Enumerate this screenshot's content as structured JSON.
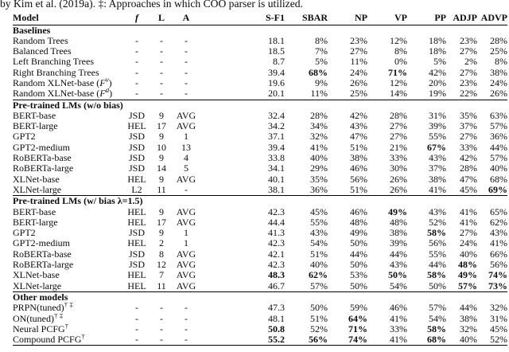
{
  "caption": "by Kim et al. (2019a). ‡: Approaches in which COO parser is utilized.",
  "table": {
    "columns": [
      {
        "label": "Model"
      },
      {
        "label": "f",
        "italic": true
      },
      {
        "label": "L"
      },
      {
        "label": "A"
      },
      {
        "label": "S-F1"
      },
      {
        "label": "SBAR"
      },
      {
        "label": "NP"
      },
      {
        "label": "VP"
      },
      {
        "label": "PP"
      },
      {
        "label": "ADJP"
      },
      {
        "label": "ADVP"
      }
    ],
    "sections": [
      {
        "label": "Baselines",
        "rows": [
          {
            "model_parts": [
              {
                "t": "Random Trees"
              }
            ],
            "cells": [
              "-",
              "-",
              "-",
              "18.1",
              "8%",
              "23%",
              "12%",
              "18%",
              "23%",
              "28%"
            ],
            "bold": []
          },
          {
            "model_parts": [
              {
                "t": "Balanced Trees"
              }
            ],
            "cells": [
              "-",
              "-",
              "-",
              "18.5",
              "7%",
              "27%",
              "8%",
              "18%",
              "27%",
              "25%"
            ],
            "bold": []
          },
          {
            "model_parts": [
              {
                "t": "Left Branching Trees"
              }
            ],
            "cells": [
              "-",
              "-",
              "-",
              "8.7",
              "5%",
              "11%",
              "0%",
              "5%",
              "2%",
              "8%"
            ],
            "bold": []
          },
          {
            "model_parts": [
              {
                "t": "Right Branching Trees"
              }
            ],
            "cells": [
              "-",
              "-",
              "-",
              "39.4",
              "68%",
              "24%",
              "71%",
              "42%",
              "27%",
              "38%"
            ],
            "bold": [
              4,
              6
            ]
          },
          {
            "model_parts": [
              {
                "t": "Random XLNet-base ("
              },
              {
                "t": "F",
                "style": "italic"
              },
              {
                "t": "v",
                "style": "sup-italic"
              },
              {
                "t": ")"
              }
            ],
            "cells": [
              "-",
              "-",
              "-",
              "19.6",
              "9%",
              "26%",
              "12%",
              "20%",
              "23%",
              "24%"
            ],
            "bold": []
          },
          {
            "model_parts": [
              {
                "t": "Random XLNet-base ("
              },
              {
                "t": "F",
                "style": "italic"
              },
              {
                "t": "d",
                "style": "sup-italic"
              },
              {
                "t": ")"
              }
            ],
            "cells": [
              "-",
              "-",
              "-",
              "20.1",
              "11%",
              "25%",
              "14%",
              "19%",
              "22%",
              "26%"
            ],
            "bold": []
          }
        ]
      },
      {
        "label": "Pre-trained LMs (w/o bias)",
        "rows": [
          {
            "model_parts": [
              {
                "t": "BERT-base"
              }
            ],
            "cells": [
              "JSD",
              "9",
              "AVG",
              "32.4",
              "28%",
              "42%",
              "28%",
              "31%",
              "35%",
              "63%"
            ],
            "bold": []
          },
          {
            "model_parts": [
              {
                "t": "BERT-large"
              }
            ],
            "cells": [
              "HEL",
              "17",
              "AVG",
              "34.2",
              "34%",
              "43%",
              "27%",
              "39%",
              "37%",
              "57%"
            ],
            "bold": []
          },
          {
            "model_parts": [
              {
                "t": "GPT2"
              }
            ],
            "cells": [
              "JSD",
              "9",
              "1",
              "37.1",
              "32%",
              "47%",
              "27%",
              "55%",
              "27%",
              "36%"
            ],
            "bold": []
          },
          {
            "model_parts": [
              {
                "t": "GPT2-medium"
              }
            ],
            "cells": [
              "JSD",
              "10",
              "13",
              "39.4",
              "41%",
              "51%",
              "21%",
              "67%",
              "33%",
              "44%"
            ],
            "bold": [
              7
            ]
          },
          {
            "model_parts": [
              {
                "t": "RoBERTa-base"
              }
            ],
            "cells": [
              "JSD",
              "9",
              "4",
              "33.8",
              "40%",
              "38%",
              "33%",
              "43%",
              "42%",
              "57%"
            ],
            "bold": []
          },
          {
            "model_parts": [
              {
                "t": "RoBERTa-large"
              }
            ],
            "cells": [
              "JSD",
              "14",
              "5",
              "34.1",
              "29%",
              "46%",
              "30%",
              "37%",
              "28%",
              "40%"
            ],
            "bold": []
          },
          {
            "model_parts": [
              {
                "t": "XLNet-base"
              }
            ],
            "cells": [
              "HEL",
              "9",
              "AVG",
              "40.1",
              "35%",
              "56%",
              "26%",
              "38%",
              "47%",
              "68%"
            ],
            "bold": []
          },
          {
            "model_parts": [
              {
                "t": "XLNet-large"
              }
            ],
            "cells": [
              "L2",
              "11",
              "-",
              "38.1",
              "36%",
              "51%",
              "26%",
              "41%",
              "45%",
              "69%"
            ],
            "bold": [
              9
            ]
          }
        ]
      },
      {
        "label": "Pre-trained LMs (w/ bias λ=1.5)",
        "rows": [
          {
            "model_parts": [
              {
                "t": "BERT-base"
              }
            ],
            "cells": [
              "HEL",
              "9",
              "AVG",
              "42.3",
              "45%",
              "46%",
              "49%",
              "43%",
              "41%",
              "65%"
            ],
            "bold": [
              6
            ]
          },
          {
            "model_parts": [
              {
                "t": "BERT-large"
              }
            ],
            "cells": [
              "HEL",
              "17",
              "AVG",
              "44.4",
              "55%",
              "48%",
              "48%",
              "52%",
              "41%",
              "62%"
            ],
            "bold": []
          },
          {
            "model_parts": [
              {
                "t": "GPT2"
              }
            ],
            "cells": [
              "JSD",
              "9",
              "1",
              "41.3",
              "43%",
              "49%",
              "38%",
              "58%",
              "27%",
              "43%"
            ],
            "bold": [
              7
            ]
          },
          {
            "model_parts": [
              {
                "t": "GPT2-medium"
              }
            ],
            "cells": [
              "HEL",
              "2",
              "1",
              "42.3",
              "54%",
              "50%",
              "39%",
              "56%",
              "24%",
              "41%"
            ],
            "bold": []
          },
          {
            "model_parts": [
              {
                "t": "RoBERTa-base"
              }
            ],
            "cells": [
              "JSD",
              "8",
              "AVG",
              "42.1",
              "51%",
              "44%",
              "44%",
              "55%",
              "40%",
              "66%"
            ],
            "bold": []
          },
          {
            "model_parts": [
              {
                "t": "RoBERTa-large"
              }
            ],
            "cells": [
              "JSD",
              "12",
              "AVG",
              "42.3",
              "40%",
              "50%",
              "43%",
              "44%",
              "48%",
              "56%"
            ],
            "bold": [
              8
            ]
          },
          {
            "model_parts": [
              {
                "t": "XLNet-base"
              }
            ],
            "cells": [
              "HEL",
              "7",
              "AVG",
              "48.3",
              "62%",
              "53%",
              "50%",
              "58%",
              "49%",
              "74%"
            ],
            "bold": [
              3,
              4,
              6,
              7,
              8,
              9
            ]
          },
          {
            "model_parts": [
              {
                "t": "XLNet-large"
              }
            ],
            "cells": [
              "HEL",
              "11",
              "AVG",
              "46.7",
              "57%",
              "50%",
              "54%",
              "50%",
              "57%",
              "73%"
            ],
            "bold": [
              8,
              9
            ]
          }
        ]
      },
      {
        "label": "Other models",
        "rows": [
          {
            "model_parts": [
              {
                "t": "PRPN(tuned)"
              },
              {
                "t": "† ‡",
                "style": "sup"
              }
            ],
            "cells": [
              "-",
              "-",
              "-",
              "47.3",
              "50%",
              "59%",
              "46%",
              "57%",
              "44%",
              "32%"
            ],
            "bold": []
          },
          {
            "model_parts": [
              {
                "t": "ON(tuned)"
              },
              {
                "t": "† ‡",
                "style": "sup"
              }
            ],
            "cells": [
              "-",
              "-",
              "-",
              "48.1",
              "51%",
              "64%",
              "41%",
              "54%",
              "38%",
              "31%"
            ],
            "bold": [
              5
            ]
          },
          {
            "model_parts": [
              {
                "t": "Neural PCFG"
              },
              {
                "t": "†",
                "style": "sup"
              }
            ],
            "cells": [
              "-",
              "-",
              "-",
              "50.8",
              "52%",
              "71%",
              "33%",
              "58%",
              "32%",
              "45%"
            ],
            "bold": [
              3,
              5,
              7
            ]
          },
          {
            "model_parts": [
              {
                "t": "Compound PCFG"
              },
              {
                "t": "†",
                "style": "sup"
              }
            ],
            "cells": [
              "-",
              "-",
              "-",
              "55.2",
              "56%",
              "74%",
              "41%",
              "68%",
              "40%",
              "52%"
            ],
            "bold": [
              3,
              4,
              5,
              7
            ]
          }
        ]
      }
    ]
  }
}
